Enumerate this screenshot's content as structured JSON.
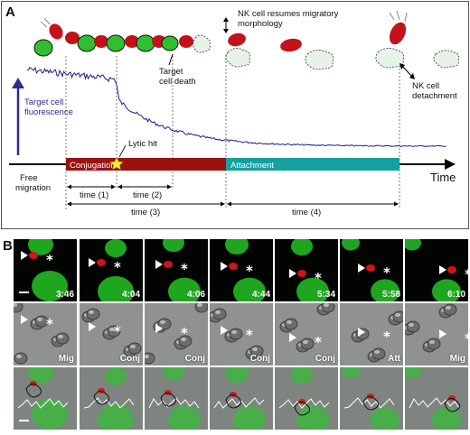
{
  "panelA": {
    "letter": "A",
    "y_label": [
      "Target cell",
      "fluorescence"
    ],
    "x_label": "Time",
    "annotations": {
      "nk_resumes": [
        "NK cell resumes migratory",
        "morphology"
      ],
      "target_death": [
        "Target",
        "cell death"
      ],
      "lytic_hit": "Lytic hit",
      "nk_detach": [
        "NK cell",
        "detachment"
      ],
      "free_migration": [
        "Free",
        "migration"
      ]
    },
    "phases": [
      {
        "label": "Conjugation",
        "color": "#9b1111"
      },
      {
        "label": "Attachment",
        "color": "#15a0a0"
      }
    ],
    "intervals": [
      "time (1)",
      "time (2)",
      "time (3)",
      "time (4)"
    ]
  },
  "panelB": {
    "letter": "B",
    "timestamps": [
      "3:46",
      "4:04",
      "4:06",
      "4:44",
      "5:34",
      "5:58",
      "6:10"
    ],
    "states": [
      "Mig",
      "Conj",
      "Conj",
      "Conj",
      "Conj",
      "Att",
      "Mig"
    ]
  },
  "colors": {
    "nk_cell": "#c3121a",
    "target_cell": "#2fbf2f",
    "trace": "#1e1e8c",
    "dead_target": "#e6f3e6"
  }
}
